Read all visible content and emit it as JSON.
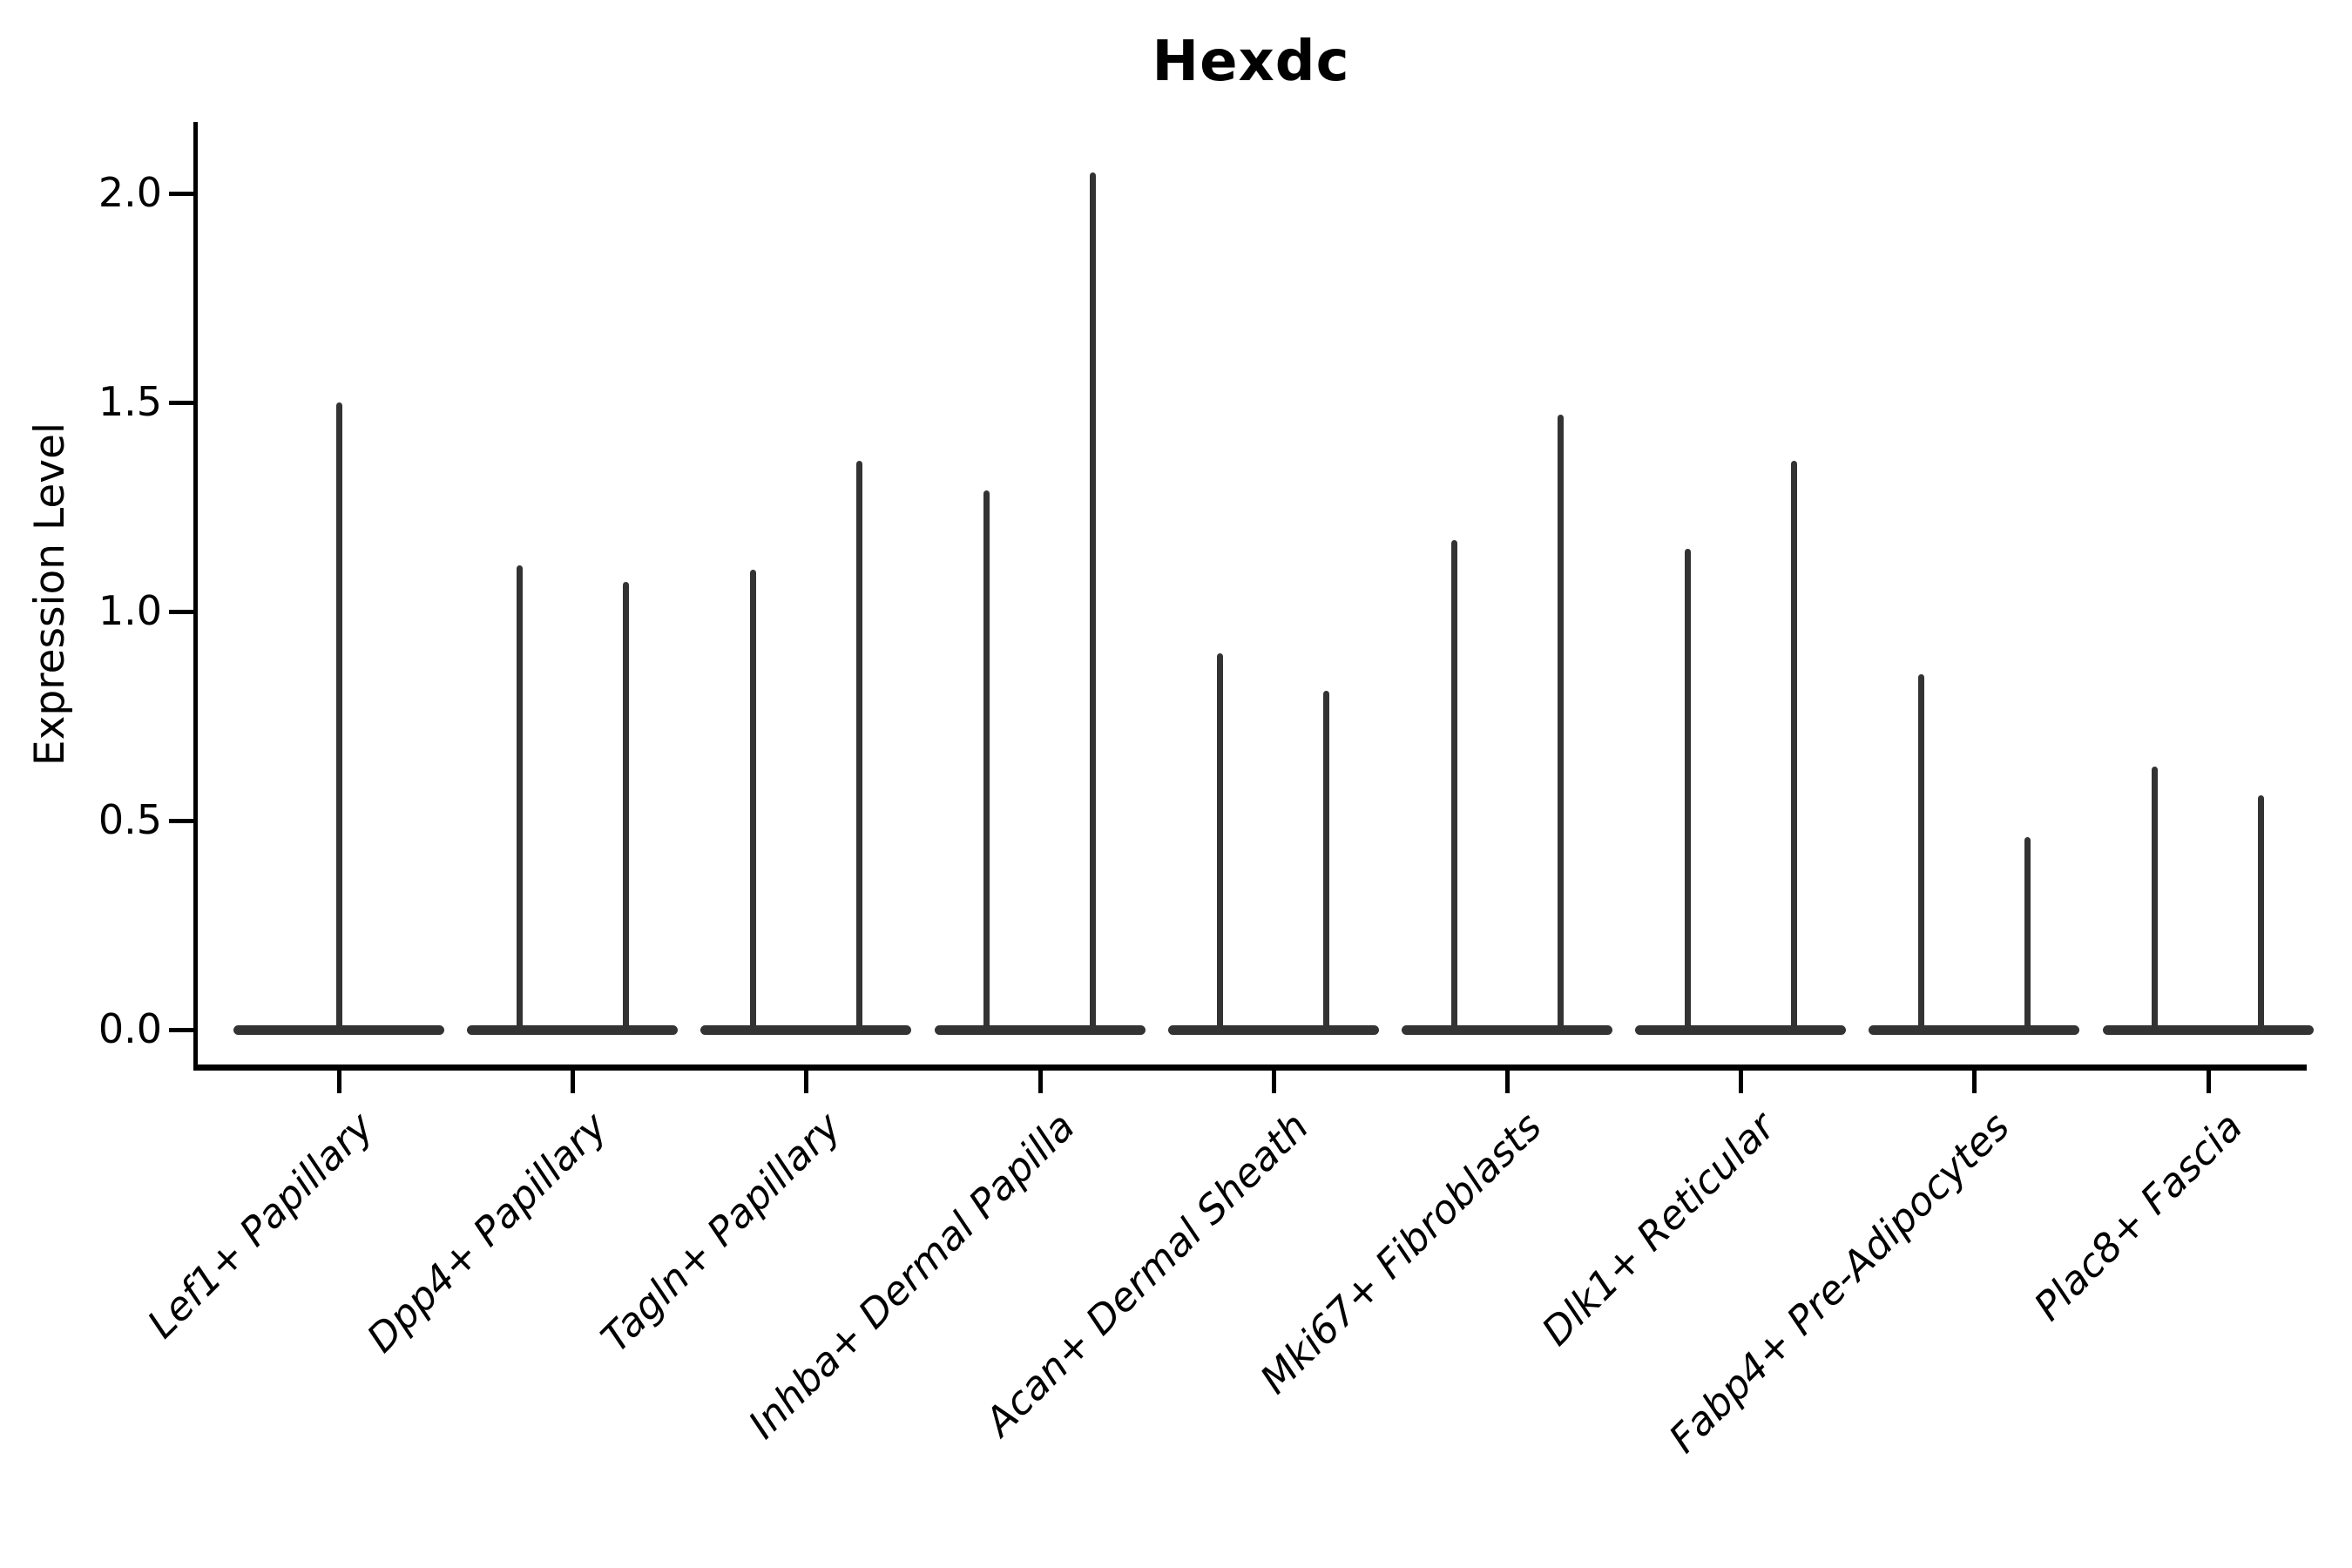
{
  "chart_data": {
    "type": "violin",
    "title": "Hexdc",
    "ylabel": "Expression Level",
    "xlabel": "",
    "yticks": [
      "0.0",
      "0.5",
      "1.0",
      "1.5",
      "2.0"
    ],
    "ytick_values": [
      0.0,
      0.5,
      1.0,
      1.5,
      2.0
    ],
    "ylim": [
      0.0,
      2.1
    ],
    "grid": false,
    "legend": null,
    "categories": [
      "Lef1+ Papillary",
      "Dpp4+ Papillary",
      "Tagln+ Papillary",
      "Inhba+ Dermal Papilla",
      "Acan+ Dermal Sheath",
      "Mki67+ Fibroblasts",
      "Dlk1+ Reticular",
      "Fabp4+ Pre-Adipocytes",
      "Plac8+ Fascia"
    ],
    "violins": [
      {
        "category": "Lef1+ Papillary",
        "maxima": [
          1.5
        ]
      },
      {
        "category": "Dpp4+ Papillary",
        "maxima": [
          1.11,
          1.07
        ]
      },
      {
        "category": "Tagln+ Papillary",
        "maxima": [
          1.1,
          1.36
        ]
      },
      {
        "category": "Inhba+ Dermal Papilla",
        "maxima": [
          1.29,
          2.05
        ]
      },
      {
        "category": "Acan+ Dermal Sheath",
        "maxima": [
          0.9,
          0.81
        ]
      },
      {
        "category": "Mki67+ Fibroblasts",
        "maxima": [
          1.17,
          1.47
        ]
      },
      {
        "category": "Dlk1+ Reticular",
        "maxima": [
          1.15,
          1.36
        ]
      },
      {
        "category": "Fabp4+ Pre-Adipocytes",
        "maxima": [
          0.85,
          0.46
        ]
      },
      {
        "category": "Plac8+ Fascia",
        "maxima": [
          0.63,
          0.56
        ]
      }
    ],
    "baseline_value": 0.0,
    "colors": {
      "violin": "#333333",
      "axis": "#000000",
      "text": "#000000"
    }
  }
}
